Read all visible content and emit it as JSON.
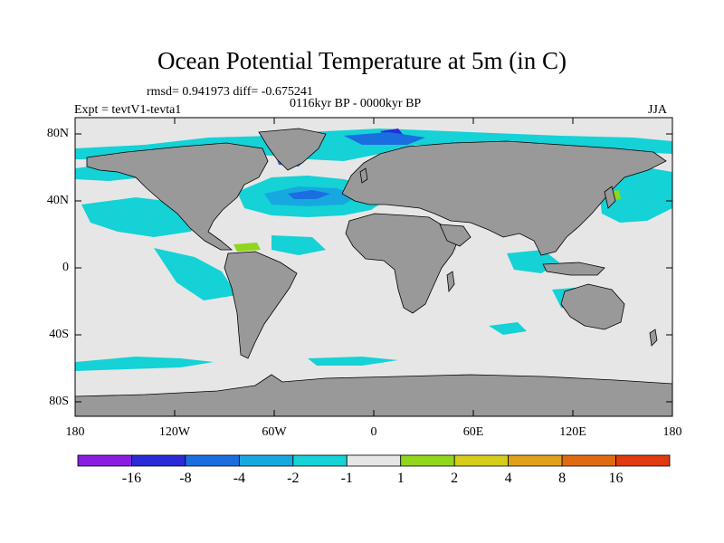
{
  "title": "Ocean Potential Temperature at 5m (in C)",
  "stats_text": "rmsd= 0.941973 diff= -0.675241",
  "period_text": "0116kyr BP - 0000kyr BP",
  "experiment_text": "Expt = tevtV1-tevta1",
  "season": "JJA",
  "latitude_labels": [
    "80N",
    "40N",
    "0",
    "40S",
    "80S"
  ],
  "longitude_labels": [
    "180",
    "120W",
    "60W",
    "0",
    "60E",
    "120E",
    "180"
  ],
  "colors": {
    "land": "#999999",
    "ocean_neutral": "#e6e6e6",
    "coastline": "#000000"
  },
  "colorbar": {
    "bins": [
      {
        "color": "#8a1ee0"
      },
      {
        "color": "#2a2ad8"
      },
      {
        "color": "#1a6ee0"
      },
      {
        "color": "#18a8e0"
      },
      {
        "color": "#14d2d6"
      },
      {
        "color": "#e6e6e6"
      },
      {
        "color": "#8fd61c"
      },
      {
        "color": "#d6cc1a"
      },
      {
        "color": "#e0a01a"
      },
      {
        "color": "#e06a10"
      },
      {
        "color": "#e03a10"
      }
    ],
    "labels": [
      "-16",
      "-8",
      "-4",
      "-2",
      "-1",
      "1",
      "2",
      "4",
      "8",
      "16"
    ]
  }
}
